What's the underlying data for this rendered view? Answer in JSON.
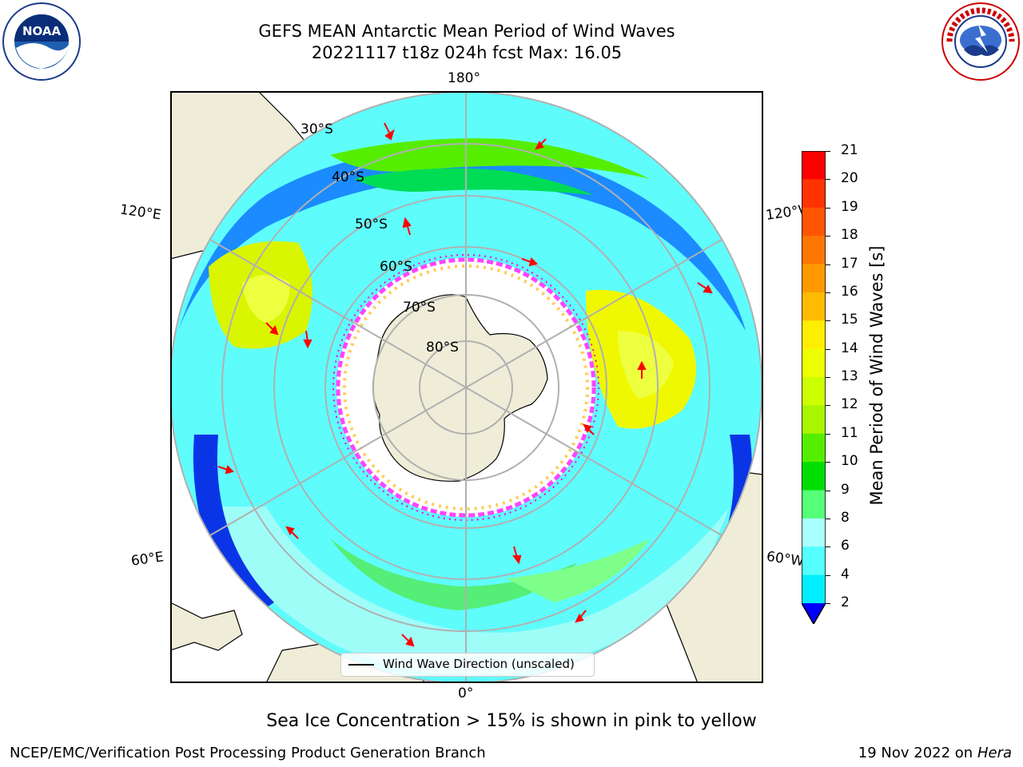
{
  "header": {
    "title": "GEFS MEAN Antarctic Mean Period of Wind Waves",
    "subtitle": "20221117 t18z 024h fcst   Max: 16.05"
  },
  "logos": {
    "left": "noaa-logo",
    "right": "national-weather-service-logo"
  },
  "map": {
    "projection": "south-polar-stereographic",
    "longitude_labels": [
      "180°",
      "120°E",
      "120°W",
      "60°E",
      "60°W",
      "0°"
    ],
    "latitude_labels": [
      "30°S",
      "40°S",
      "50°S",
      "60°S",
      "70°S",
      "80°S"
    ]
  },
  "colorbar": {
    "label": "Mean Period of Wind Waves [s]",
    "ticks": [
      "21",
      "20",
      "19",
      "18",
      "17",
      "16",
      "15",
      "14",
      "13",
      "12",
      "11",
      "10",
      "9",
      "8",
      "6",
      "4",
      "2"
    ],
    "colors": [
      "#ff0000",
      "#ff3300",
      "#ff5500",
      "#ff7700",
      "#ff9900",
      "#ffbb00",
      "#ffee00",
      "#eeff00",
      "#ccff00",
      "#a8f500",
      "#55ee00",
      "#00dd00",
      "#55ff77",
      "#aaffff",
      "#55ffff",
      "#00eeff",
      "#0077ff",
      "#0000ff"
    ]
  },
  "legend": {
    "label": "Wind Wave Direction (unscaled)"
  },
  "footer": {
    "note": "Sea Ice Concentration > 15% is shown in pink to yellow",
    "credit": "NCEP/EMC/Verification Post Processing Product Generation Branch",
    "date": "19 Nov 2022 on",
    "machine": "Hera"
  }
}
